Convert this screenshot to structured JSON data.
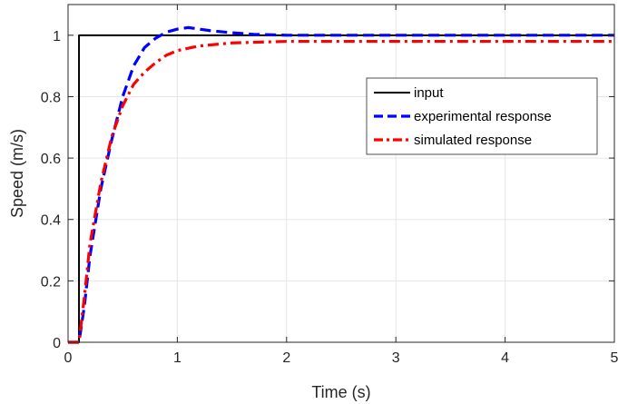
{
  "chart_data": {
    "type": "line",
    "xlabel": "Time (s)",
    "ylabel": "Speed (m/s)",
    "xlim": [
      0,
      5
    ],
    "ylim": [
      0,
      1.1
    ],
    "x_ticks": [
      0,
      1,
      2,
      3,
      4,
      5
    ],
    "y_ticks": [
      0,
      0.2,
      0.4,
      0.6,
      0.8,
      1
    ],
    "x_tick_labels": [
      "0",
      "1",
      "2",
      "3",
      "4",
      "5"
    ],
    "y_tick_labels": [
      "0",
      "0.2",
      "0.4",
      "0.6",
      "0.8",
      "1"
    ],
    "grid": true,
    "legend_position": "upper-right",
    "series": [
      {
        "name": "input",
        "color": "#000000",
        "style": "solid",
        "x": [
          0,
          0.1,
          0.1,
          5
        ],
        "y": [
          0,
          0,
          1,
          1
        ]
      },
      {
        "name": "experimental response",
        "color": "#0000ff",
        "style": "dashed",
        "x": [
          0,
          0.1,
          0.15,
          0.2,
          0.3,
          0.4,
          0.5,
          0.6,
          0.7,
          0.8,
          0.9,
          1.0,
          1.1,
          1.2,
          1.3,
          1.5,
          1.7,
          2.0,
          2.5,
          3.0,
          4.0,
          5.0
        ],
        "y": [
          0,
          0,
          0.12,
          0.28,
          0.5,
          0.66,
          0.8,
          0.9,
          0.96,
          0.99,
          1.01,
          1.02,
          1.025,
          1.02,
          1.015,
          1.008,
          1.003,
          1.0,
          1.0,
          1.0,
          1.0,
          1.0
        ]
      },
      {
        "name": "simulated response",
        "color": "#ff0000",
        "style": "dashdot",
        "x": [
          0,
          0.1,
          0.15,
          0.2,
          0.3,
          0.4,
          0.5,
          0.6,
          0.7,
          0.8,
          0.9,
          1.0,
          1.2,
          1.5,
          2.0,
          2.5,
          3.0,
          4.0,
          5.0
        ],
        "y": [
          0,
          0,
          0.15,
          0.32,
          0.52,
          0.67,
          0.77,
          0.84,
          0.88,
          0.91,
          0.935,
          0.95,
          0.965,
          0.975,
          0.98,
          0.98,
          0.98,
          0.98,
          0.98
        ]
      }
    ]
  }
}
